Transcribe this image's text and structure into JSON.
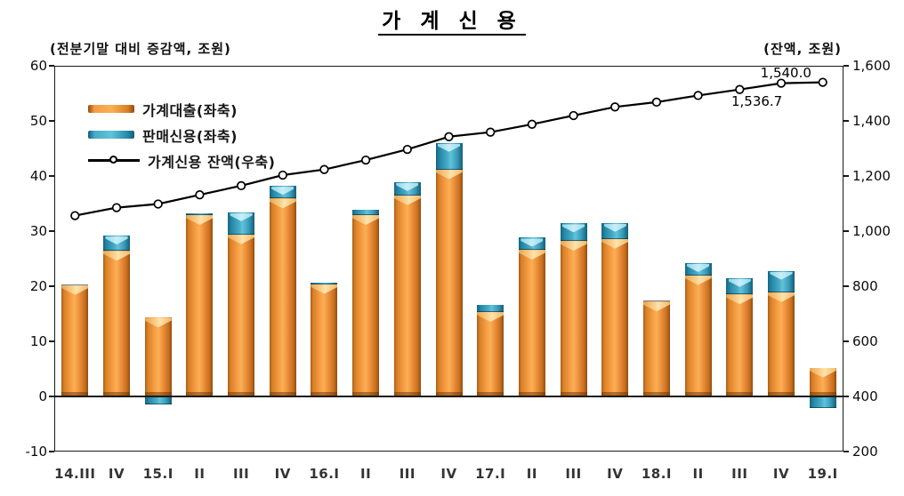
{
  "title": "가 계 신 용",
  "left_axis_title": "(전분기말 대비 증감액, 조원)",
  "right_axis_title": "(잔액, 조원)",
  "legend": {
    "loans_label": "가계대출(좌축)",
    "sale_credit_label": "판매신용(좌축)",
    "balance_label": "가계신용 잔액(우축)"
  },
  "annotations": [
    {
      "text": "1,540.0",
      "attached_to": "19.I"
    },
    {
      "text": "1,536.7",
      "attached_to": "18.IV"
    }
  ],
  "colors": {
    "loans_bar": "#ee963a",
    "sale_credit_bar": "#3fa5c2",
    "balance_line": "#000000",
    "marker_fill": "#ffffff",
    "axis": "#1a1a1a",
    "background": "#ffffff"
  },
  "chart_data": {
    "type": "bar",
    "subtype": "stacked bars (left axis) + line with circle markers (right axis)",
    "title": "가 계 신 용",
    "categories": [
      "14.III",
      "IV",
      "15.I",
      "II",
      "III",
      "IV",
      "16.I",
      "II",
      "III",
      "IV",
      "17.I",
      "II",
      "III",
      "IV",
      "18.I",
      "II",
      "III",
      "IV",
      "19.I"
    ],
    "series": [
      {
        "name": "가계대출(좌축)",
        "type": "bar",
        "axis": "left",
        "color": "#ee963a",
        "values": [
          20.2,
          26.4,
          14.3,
          32.9,
          29.4,
          35.9,
          20.4,
          32.9,
          36.5,
          41.2,
          15.3,
          26.6,
          28.2,
          28.6,
          17.2,
          22.0,
          18.5,
          18.9,
          5.2
        ]
      },
      {
        "name": "판매신용(좌축)",
        "type": "bar",
        "axis": "left",
        "color": "#3fa5c2",
        "values": [
          0.2,
          2.8,
          -1.3,
          0.3,
          4.0,
          2.3,
          0.2,
          1.0,
          2.4,
          4.8,
          1.3,
          2.2,
          3.2,
          2.9,
          0.2,
          2.2,
          3.0,
          3.9,
          -1.9
        ]
      },
      {
        "name": "가계신용 잔액(우축)",
        "type": "line",
        "axis": "right",
        "color": "#000000",
        "values": [
          1056.1,
          1085.3,
          1098.3,
          1131.5,
          1164.9,
          1203.1,
          1223.7,
          1257.6,
          1296.5,
          1342.5,
          1359.1,
          1387.9,
          1419.3,
          1450.8,
          1468.2,
          1492.4,
          1513.9,
          1536.7,
          1540.0
        ]
      }
    ],
    "left_axis": {
      "label": "(전분기말 대비 증감액, 조원)",
      "min": -10,
      "max": 60,
      "ticks": [
        "60",
        "50",
        "40",
        "30",
        "20",
        "10",
        "0",
        "-10"
      ]
    },
    "right_axis": {
      "label": "(잔액, 조원)",
      "min": 200,
      "max": 1600,
      "ticks": [
        "1,600",
        "1,400",
        "1,200",
        "1,000",
        "800",
        "600",
        "400",
        "200"
      ]
    },
    "grid": false,
    "legend_position": "top-left-inside"
  }
}
